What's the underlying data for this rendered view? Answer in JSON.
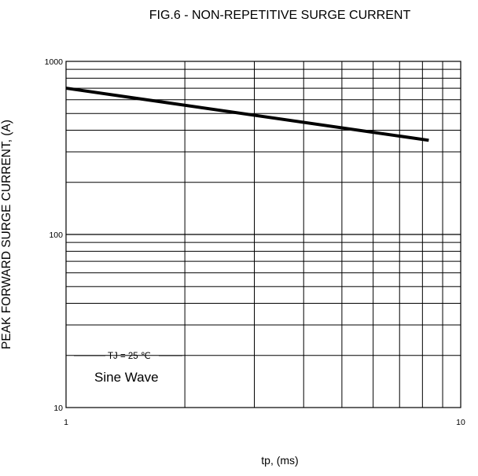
{
  "chart_data": {
    "type": "line",
    "title": "FIG.6 - NON-REPETITIVE SURGE CURRENT",
    "xlabel": "tp, (ms)",
    "ylabel": "PEAK FORWARD SURGE CURRENT, (A)",
    "x_scale": "log",
    "y_scale": "log",
    "xlim": [
      1,
      10
    ],
    "ylim": [
      10,
      1000
    ],
    "grid": true,
    "x_ticks": [
      "1",
      "10"
    ],
    "y_ticks": [
      "1000",
      "100",
      "10"
    ],
    "series": [
      {
        "x": [
          1,
          8.3
        ],
        "y": [
          700,
          350
        ]
      }
    ],
    "annotations": [
      "TJ = 25 ℃",
      "Sine Wave"
    ]
  }
}
